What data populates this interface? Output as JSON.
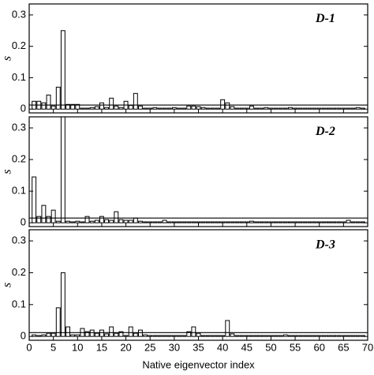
{
  "chart_data": [
    {
      "type": "bar",
      "title": "D-1",
      "y_label": "s",
      "x": [
        1,
        2,
        3,
        4,
        5,
        6,
        7,
        8,
        9,
        10,
        11,
        12,
        13,
        14,
        15,
        16,
        17,
        18,
        19,
        20,
        21,
        22,
        23,
        24,
        25,
        26,
        27,
        28,
        29,
        30,
        31,
        32,
        33,
        34,
        35,
        36,
        37,
        38,
        39,
        40,
        41,
        42,
        43,
        44,
        45,
        46,
        47,
        48,
        49,
        50,
        51,
        52,
        53,
        54,
        55,
        56,
        57,
        58,
        59,
        60,
        61,
        62,
        63,
        64,
        65,
        66,
        67,
        68,
        69
      ],
      "values": [
        0.025,
        0.025,
        0.02,
        0.045,
        0.01,
        0.07,
        0.25,
        0.015,
        0.015,
        0.015,
        0.003,
        0.003,
        0.005,
        0.008,
        0.02,
        0.005,
        0.035,
        0.01,
        0.005,
        0.025,
        0.012,
        0.05,
        0.01,
        0.003,
        0.003,
        0.005,
        0.003,
        0.003,
        0.003,
        0.005,
        0.003,
        0.003,
        0.01,
        0.01,
        0.008,
        0.005,
        0.003,
        0.003,
        0.003,
        0.03,
        0.02,
        0.008,
        0.003,
        0.003,
        0.003,
        0.01,
        0.003,
        0.003,
        0.005,
        0.003,
        0.003,
        0.003,
        0.003,
        0.005,
        0.003,
        0.003,
        0.003,
        0.003,
        0.003,
        0.003,
        0.003,
        0.003,
        0.003,
        0.003,
        0.003,
        0.003,
        0.003,
        0.005,
        0.003
      ],
      "threshold": 0.013,
      "color": "#000000",
      "xlim": [
        0,
        70
      ],
      "xticks": [
        0,
        5,
        10,
        15,
        20,
        25,
        30,
        35,
        40,
        45,
        50,
        55,
        60,
        65,
        70
      ],
      "ylim": [
        -0.012,
        0.335
      ],
      "yticks": [
        0,
        0.1,
        0.2,
        0.3
      ]
    },
    {
      "type": "bar",
      "title": "D-2",
      "y_label": "s",
      "x": [
        1,
        2,
        3,
        4,
        5,
        6,
        7,
        8,
        9,
        10,
        11,
        12,
        13,
        14,
        15,
        16,
        17,
        18,
        19,
        20,
        21,
        22,
        23,
        24,
        25,
        26,
        27,
        28,
        29,
        30,
        31,
        32,
        33,
        34,
        35,
        36,
        37,
        38,
        39,
        40,
        41,
        42,
        43,
        44,
        45,
        46,
        47,
        48,
        49,
        50,
        51,
        52,
        53,
        54,
        55,
        56,
        57,
        58,
        59,
        60,
        61,
        62,
        63,
        64,
        65,
        66,
        67,
        68,
        69
      ],
      "values": [
        0.145,
        0.02,
        0.055,
        0.02,
        0.04,
        0.005,
        0.335,
        0.005,
        0.003,
        0.005,
        0.003,
        0.02,
        0.005,
        0.008,
        0.02,
        0.01,
        0.008,
        0.035,
        0.01,
        0.008,
        0.008,
        0.015,
        0.005,
        0.003,
        0.003,
        0.003,
        0.003,
        0.008,
        0.003,
        0.003,
        0.003,
        0.003,
        0.003,
        0.003,
        0.003,
        0.003,
        0.003,
        0.003,
        0.003,
        0.003,
        0.003,
        0.003,
        0.003,
        0.003,
        0.003,
        0.005,
        0.003,
        0.003,
        0.003,
        0.003,
        0.003,
        0.003,
        0.003,
        0.003,
        0.003,
        0.003,
        0.003,
        0.003,
        0.003,
        0.003,
        0.003,
        0.003,
        0.003,
        0.003,
        0.003,
        0.008,
        0.003,
        0.003,
        0.003
      ],
      "threshold": 0.015,
      "color": "#000000",
      "xlim": [
        0,
        70
      ],
      "xticks": [
        0,
        5,
        10,
        15,
        20,
        25,
        30,
        35,
        40,
        45,
        50,
        55,
        60,
        65,
        70
      ],
      "ylim": [
        -0.012,
        0.335
      ],
      "yticks": [
        0,
        0.1,
        0.2,
        0.3
      ]
    },
    {
      "type": "bar",
      "title": "D-3",
      "y_label": "s",
      "x_label": "Native eigenvector index",
      "x": [
        1,
        2,
        3,
        4,
        5,
        6,
        7,
        8,
        9,
        10,
        11,
        12,
        13,
        14,
        15,
        16,
        17,
        18,
        19,
        20,
        21,
        22,
        23,
        24,
        25,
        26,
        27,
        28,
        29,
        30,
        31,
        32,
        33,
        34,
        35,
        36,
        37,
        38,
        39,
        40,
        41,
        42,
        43,
        44,
        45,
        46,
        47,
        48,
        49,
        50,
        51,
        52,
        53,
        54,
        55,
        56,
        57,
        58,
        59,
        60,
        61,
        62,
        63,
        64,
        65,
        66,
        67,
        68,
        69
      ],
      "values": [
        0.005,
        0.003,
        0.005,
        0.01,
        0.01,
        0.09,
        0.2,
        0.03,
        0.005,
        0.005,
        0.025,
        0.015,
        0.02,
        0.01,
        0.02,
        0.008,
        0.03,
        0.01,
        0.015,
        0.003,
        0.03,
        0.01,
        0.02,
        0.005,
        0.003,
        0.003,
        0.003,
        0.003,
        0.003,
        0.003,
        0.003,
        0.003,
        0.015,
        0.03,
        0.01,
        0.003,
        0.003,
        0.003,
        0.003,
        0.003,
        0.05,
        0.008,
        0.003,
        0.003,
        0.003,
        0.003,
        0.003,
        0.003,
        0.003,
        0.003,
        0.003,
        0.003,
        0.005,
        0.003,
        0.003,
        0.003,
        0.003,
        0.003,
        0.003,
        0.003,
        0.003,
        0.003,
        0.003,
        0.003,
        0.003,
        0.003,
        0.003,
        0.003,
        0.003
      ],
      "threshold": 0.012,
      "color": "#000000",
      "xlim": [
        0,
        70
      ],
      "xticks": [
        0,
        5,
        10,
        15,
        20,
        25,
        30,
        35,
        40,
        45,
        50,
        55,
        60,
        65,
        70
      ],
      "ylim": [
        -0.012,
        0.335
      ],
      "yticks": [
        0,
        0.1,
        0.2,
        0.3
      ]
    }
  ]
}
